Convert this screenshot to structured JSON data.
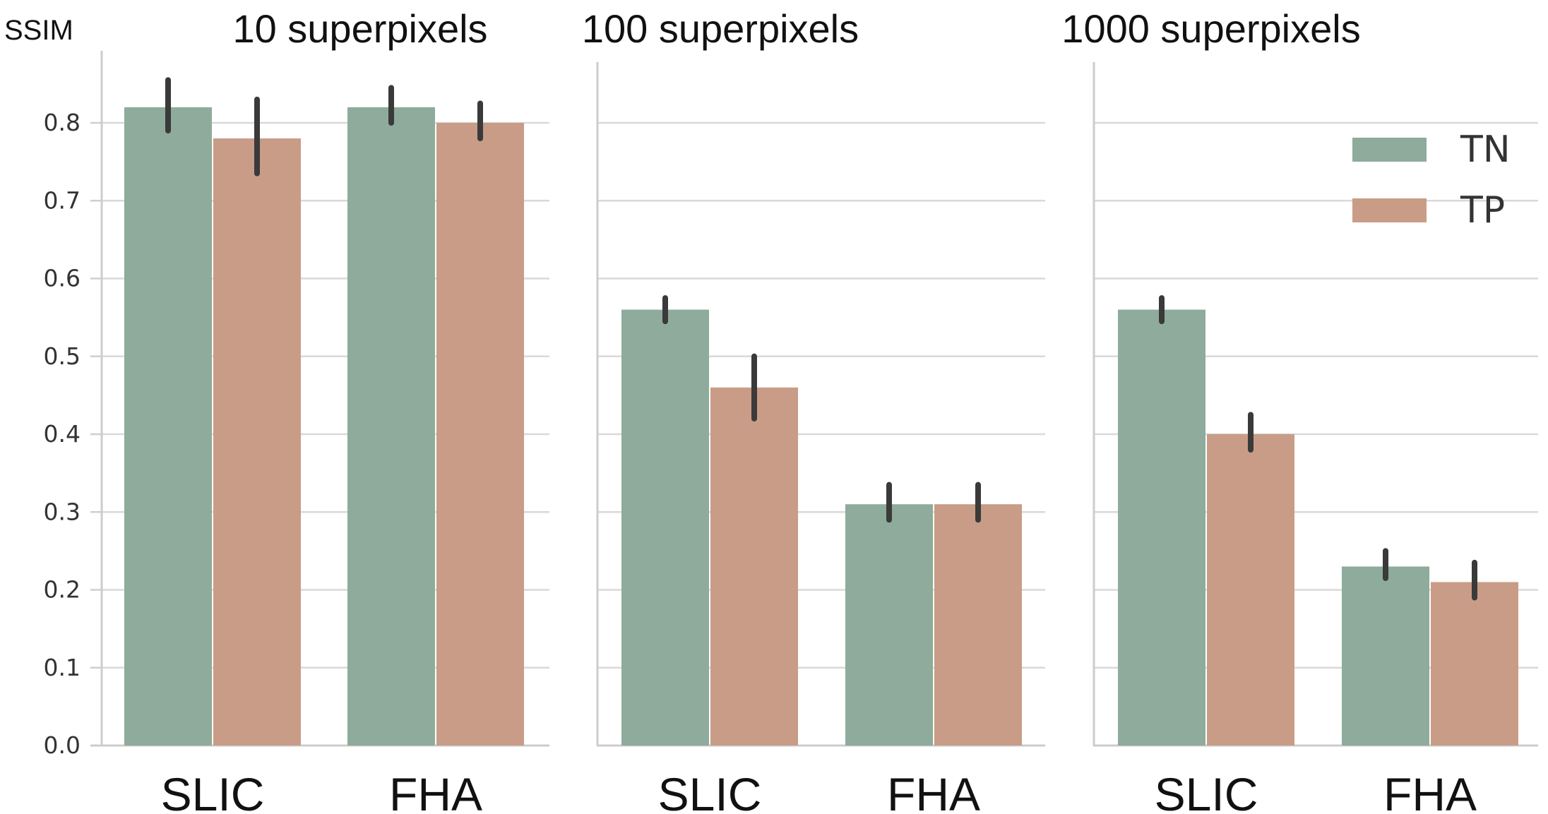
{
  "chart_data": {
    "type": "bar",
    "ylabel": "SSIM",
    "ylim": [
      0,
      0.88
    ],
    "yticks": [
      "0.0",
      "0.1",
      "0.2",
      "0.3",
      "0.4",
      "0.5",
      "0.6",
      "0.7",
      "0.8"
    ],
    "grid": "horizontal",
    "legend": {
      "placement": "top-right of third panel",
      "entries": [
        {
          "name": "TN",
          "color": "#8eab9b"
        },
        {
          "name": "TP",
          "color": "#c99c87"
        }
      ]
    },
    "categories": [
      "SLIC",
      "FHA"
    ],
    "panels": [
      {
        "title": "10 superpixels",
        "series": [
          {
            "name": "TN",
            "color": "#8eab9b",
            "values": [
              0.82,
              0.82
            ],
            "err_low": [
              0.79,
              0.8
            ],
            "err_high": [
              0.855,
              0.845
            ]
          },
          {
            "name": "TP",
            "color": "#c99c87",
            "values": [
              0.78,
              0.8
            ],
            "err_low": [
              0.735,
              0.78
            ],
            "err_high": [
              0.83,
              0.825
            ]
          }
        ]
      },
      {
        "title": "100 superpixels",
        "series": [
          {
            "name": "TN",
            "color": "#8eab9b",
            "values": [
              0.56,
              0.31
            ],
            "err_low": [
              0.545,
              0.29
            ],
            "err_high": [
              0.575,
              0.335
            ]
          },
          {
            "name": "TP",
            "color": "#c99c87",
            "values": [
              0.46,
              0.31
            ],
            "err_low": [
              0.42,
              0.29
            ],
            "err_high": [
              0.5,
              0.335
            ]
          }
        ]
      },
      {
        "title": "1000 superpixels",
        "series": [
          {
            "name": "TN",
            "color": "#8eab9b",
            "values": [
              0.56,
              0.23
            ],
            "err_low": [
              0.545,
              0.215
            ],
            "err_high": [
              0.575,
              0.25
            ]
          },
          {
            "name": "TP",
            "color": "#c99c87",
            "values": [
              0.4,
              0.21
            ],
            "err_low": [
              0.38,
              0.19
            ],
            "err_high": [
              0.425,
              0.235
            ]
          }
        ]
      }
    ]
  }
}
